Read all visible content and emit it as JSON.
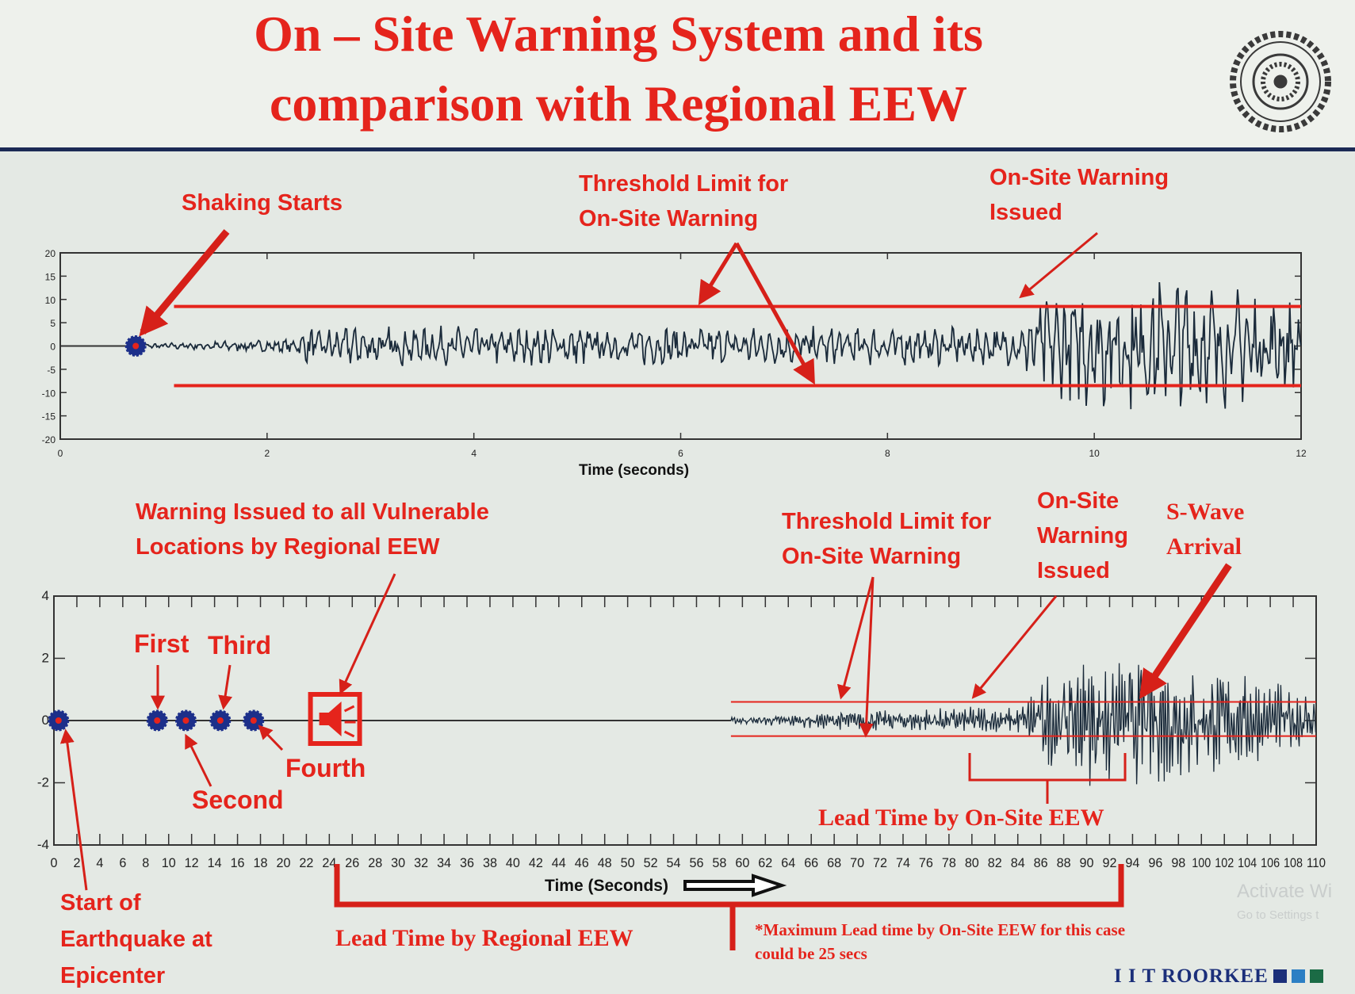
{
  "title": {
    "line1": "On – Site Warning System and its",
    "line2": "comparison with Regional EEW"
  },
  "logo": {
    "text": "INDIAN INSTITUTE OF TECHNOLOGY ROORKEE"
  },
  "footer": {
    "brand": "I I T ROORKEE",
    "square_colors": [
      "#1b2f7a",
      "#2c7fc4",
      "#1b6b45"
    ]
  },
  "watermark": {
    "line1": "Activate Wi",
    "line2": "Go to Settings t"
  },
  "top_annotations": {
    "shaking_starts": "Shaking Starts",
    "threshold": [
      "Threshold Limit for",
      "On-Site Warning"
    ],
    "onsite_issued": [
      "On-Site Warning",
      "Issued"
    ]
  },
  "bottom_annotations": {
    "regional_warning": [
      "Warning Issued to all Vulnerable",
      "Locations by Regional EEW"
    ],
    "threshold": [
      "Threshold Limit for",
      "On-Site Warning"
    ],
    "onsite_issued": [
      "On-Site",
      "Warning",
      "Issued"
    ],
    "s_wave": [
      "S-Wave",
      "Arrival"
    ],
    "first": "First",
    "second": "Second",
    "third": "Third",
    "fourth": "Fourth",
    "start": [
      "Start of",
      "Earthquake at",
      "Epicenter"
    ],
    "lead_onsite": "Lead Time by On-Site EEW",
    "lead_regional": "Lead Time by Regional EEW",
    "footnote": [
      "*Maximum Lead time by On-Site EEW for this case",
      "could be 25 secs"
    ]
  },
  "colors": {
    "accent": "#e5241c",
    "trace": "#1a2a3a",
    "marker": "#1c2f8a"
  },
  "chart_data": [
    {
      "type": "line",
      "title": "",
      "xlabel": "Time (seconds)",
      "ylabel": "",
      "xlim": [
        0,
        12
      ],
      "ylim": [
        -20,
        20
      ],
      "xticks": [
        0,
        2,
        4,
        6,
        8,
        10,
        12
      ],
      "yticks": [
        20,
        15,
        10,
        5,
        0,
        -5,
        -10,
        -15,
        -20
      ],
      "grid": false,
      "thresholds": [
        {
          "y": 8.5,
          "x": [
            1.1,
            12
          ]
        },
        {
          "y": -8.5,
          "x": [
            1.1,
            12
          ]
        }
      ],
      "markers": [
        {
          "x": 0.73,
          "y": 0
        }
      ],
      "waveform_envelope": [
        [
          0.73,
          0.5
        ],
        [
          2.3,
          1.5
        ],
        [
          2.4,
          4
        ],
        [
          9.3,
          4
        ],
        [
          9.4,
          10
        ],
        [
          10.3,
          15
        ],
        [
          11,
          14
        ],
        [
          12,
          9
        ]
      ]
    },
    {
      "type": "line",
      "title": "",
      "xlabel": "Time (Seconds)",
      "ylabel": "",
      "xlim": [
        0,
        110
      ],
      "ylim": [
        -4,
        4
      ],
      "xticks": [
        0,
        2,
        4,
        6,
        8,
        10,
        12,
        14,
        16,
        18,
        20,
        22,
        24,
        26,
        28,
        30,
        32,
        34,
        36,
        38,
        40,
        42,
        44,
        46,
        48,
        50,
        52,
        54,
        56,
        58,
        60,
        62,
        64,
        66,
        68,
        70,
        72,
        74,
        76,
        78,
        80,
        82,
        84,
        86,
        88,
        90,
        92,
        94,
        96,
        98,
        100,
        102,
        104,
        106,
        108,
        110
      ],
      "yticks": [
        4,
        2,
        0,
        -2,
        -4
      ],
      "grid": false,
      "thresholds": [
        {
          "y": 0.6,
          "x": [
            59,
            110
          ]
        },
        {
          "y": -0.5,
          "x": [
            59,
            110
          ]
        }
      ],
      "markers": [
        {
          "x": 0.4,
          "y": 0
        },
        {
          "x": 9,
          "y": 0
        },
        {
          "x": 11.5,
          "y": 0
        },
        {
          "x": 14.5,
          "y": 0
        },
        {
          "x": 17.4,
          "y": 0
        }
      ],
      "speaker_marker": {
        "x": 24.5,
        "y": 0
      },
      "waveform_envelope": [
        [
          59,
          0.1
        ],
        [
          70,
          0.3
        ],
        [
          84,
          0.45
        ],
        [
          87,
          1.6
        ],
        [
          92,
          2.2
        ],
        [
          98,
          1.8
        ],
        [
          104,
          1.4
        ],
        [
          110,
          0.8
        ]
      ]
    }
  ]
}
